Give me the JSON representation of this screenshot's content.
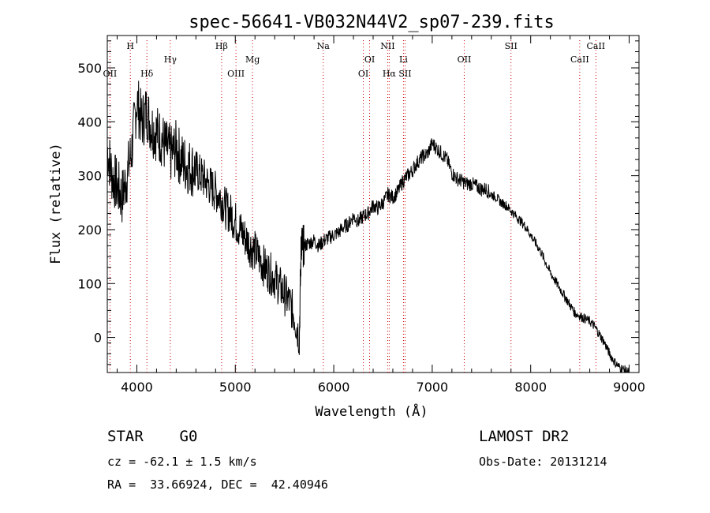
{
  "chart_data": {
    "type": "line",
    "title": "spec-56641-VB032N44V2_sp07-239.fits",
    "xlabel": "Wavelength (Å)",
    "ylabel": "Flux (relative)",
    "xlim": [
      3700,
      9100
    ],
    "ylim": [
      -65,
      560
    ],
    "xticks": [
      4000,
      5000,
      6000,
      7000,
      8000,
      9000
    ],
    "yticks": [
      0,
      100,
      200,
      300,
      400,
      500
    ],
    "line_color": "#000000",
    "marker_color": "#cc0000",
    "grid": false,
    "series": [
      {
        "x": [
          3700,
          3750,
          3800,
          3850,
          3900,
          3950,
          4000,
          4050,
          4100,
          4150,
          4200,
          4250,
          4300,
          4350,
          4400,
          4450,
          4500,
          4550,
          4600,
          4650,
          4700,
          4750,
          4800,
          4850,
          4900,
          4950,
          5000,
          5050,
          5100,
          5150,
          5200,
          5250,
          5300,
          5350,
          5400,
          5450,
          5500,
          5550,
          5600,
          5650,
          5670,
          5680,
          5700,
          5750,
          5800,
          5850,
          5900,
          5950,
          6000,
          6050,
          6100,
          6150,
          6200,
          6250,
          6300,
          6350,
          6400,
          6450,
          6500,
          6550,
          6600,
          6650,
          6700,
          6750,
          6800,
          6850,
          6900,
          6950,
          7000,
          7050,
          7100,
          7150,
          7200,
          7250,
          7300,
          7350,
          7400,
          7450,
          7500,
          7550,
          7600,
          7650,
          7700,
          7750,
          7800,
          7850,
          7900,
          7950,
          8000,
          8050,
          8100,
          8150,
          8200,
          8250,
          8300,
          8350,
          8400,
          8450,
          8500,
          8550,
          8600,
          8650,
          8700,
          8750,
          8800,
          8850,
          8900,
          8950,
          9000
        ],
        "values": [
          350,
          300,
          280,
          260,
          300,
          350,
          440,
          400,
          420,
          390,
          380,
          370,
          350,
          340,
          350,
          330,
          320,
          315,
          310,
          300,
          290,
          280,
          270,
          260,
          240,
          230,
          215,
          200,
          185,
          170,
          160,
          145,
          130,
          120,
          110,
          95,
          80,
          65,
          40,
          0,
          180,
          170,
          170,
          175,
          180,
          170,
          180,
          185,
          190,
          195,
          205,
          210,
          225,
          215,
          225,
          230,
          245,
          240,
          250,
          265,
          260,
          270,
          290,
          300,
          310,
          325,
          335,
          340,
          360,
          350,
          340,
          330,
          305,
          295,
          290,
          285,
          285,
          280,
          275,
          275,
          265,
          260,
          250,
          245,
          235,
          225,
          215,
          205,
          190,
          175,
          160,
          140,
          120,
          105,
          90,
          75,
          60,
          45,
          40,
          35,
          30,
          20,
          5,
          -10,
          -30,
          -45,
          -55,
          -60,
          -65
        ]
      }
    ],
    "lines": [
      {
        "label": "OII",
        "wl": 3727,
        "row": 2
      },
      {
        "label": "H",
        "wl": 3934,
        "row": 0
      },
      {
        "label": "Hδ",
        "wl": 4102,
        "row": 2
      },
      {
        "label": "Hγ",
        "wl": 4340,
        "row": 1
      },
      {
        "label": "Hβ",
        "wl": 4861,
        "row": 0
      },
      {
        "label": "OIII",
        "wl": 5007,
        "row": 2
      },
      {
        "label": "Mg",
        "wl": 5175,
        "row": 1
      },
      {
        "label": "Na",
        "wl": 5893,
        "row": 0
      },
      {
        "label": "OI",
        "wl": 6300,
        "row": 2
      },
      {
        "label": "OI",
        "wl": 6364,
        "row": 1
      },
      {
        "label": "NII",
        "wl": 6548,
        "row": 0
      },
      {
        "label": "Hα",
        "wl": 6563,
        "row": 2
      },
      {
        "label": "Li",
        "wl": 6708,
        "row": 1
      },
      {
        "label": "SII",
        "wl": 6724,
        "row": 2
      },
      {
        "label": "OII",
        "wl": 7325,
        "row": 1
      },
      {
        "label": "SII",
        "wl": 7800,
        "row": 0
      },
      {
        "label": "CaII",
        "wl": 8498,
        "row": 1
      },
      {
        "label": "CaII",
        "wl": 8662,
        "row": 0
      }
    ]
  },
  "info": {
    "object_type": "STAR    G0",
    "survey": "LAMOST DR2",
    "cz": "cz = -62.1 ± 1.5 km/s",
    "obs_date": "Obs-Date: 20131214",
    "coords": "RA =  33.66924, DEC =  42.40946"
  }
}
